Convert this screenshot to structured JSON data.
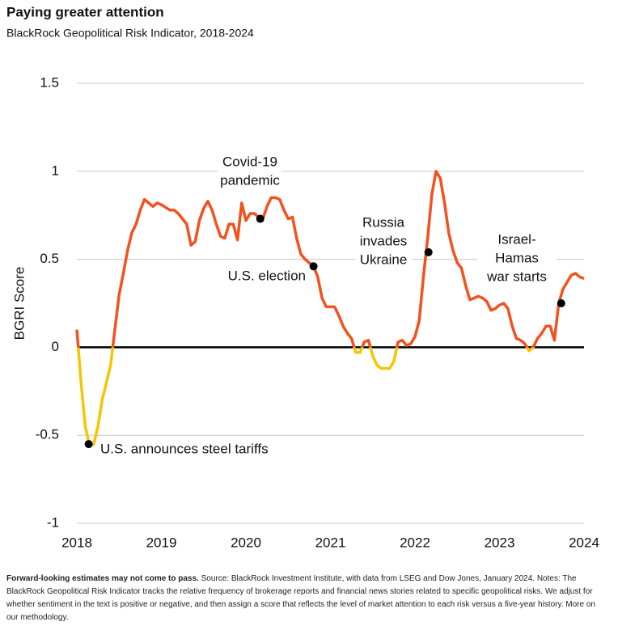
{
  "chart_data": {
    "type": "line",
    "title": "Paying greater attention",
    "subtitle": "BlackRock Geopolitical Risk Indicator, 2018-2024",
    "y_label": "BGRI Score",
    "xlim": [
      2018,
      2024
    ],
    "xticks": [
      2018,
      2019,
      2020,
      2021,
      2022,
      2023,
      2024
    ],
    "ylim": [
      -1,
      1.5
    ],
    "yticks": [
      -1,
      -0.5,
      0,
      0.5,
      1,
      1.5
    ],
    "grid": true,
    "series": [
      {
        "name": "BGRI",
        "color": "#f4511e",
        "negative_color": "#f7c600",
        "x": [
          2018,
          2018.05,
          2018.1,
          2018.15,
          2018.2,
          2018.25,
          2018.3,
          2018.35,
          2018.4,
          2018.45,
          2018.5,
          2018.55,
          2018.6,
          2018.65,
          2018.7,
          2018.75,
          2018.8,
          2018.85,
          2018.9,
          2018.95,
          2019,
          2019.1,
          2019.15,
          2019.2,
          2019.3,
          2019.35,
          2019.4,
          2019.45,
          2019.5,
          2019.55,
          2019.6,
          2019.65,
          2019.7,
          2019.75,
          2019.8,
          2019.85,
          2019.9,
          2019.95,
          2020,
          2020.05,
          2020.1,
          2020.15,
          2020.2,
          2020.25,
          2020.3,
          2020.35,
          2020.4,
          2020.45,
          2020.5,
          2020.55,
          2020.6,
          2020.65,
          2020.7,
          2020.75,
          2020.8,
          2020.85,
          2020.9,
          2020.95,
          2021,
          2021.05,
          2021.1,
          2021.15,
          2021.2,
          2021.25,
          2021.3,
          2021.35,
          2021.4,
          2021.45,
          2021.5,
          2021.55,
          2021.6,
          2021.65,
          2021.7,
          2021.75,
          2021.8,
          2021.85,
          2021.9,
          2021.95,
          2022,
          2022.05,
          2022.1,
          2022.15,
          2022.2,
          2022.25,
          2022.3,
          2022.35,
          2022.4,
          2022.45,
          2022.5,
          2022.55,
          2022.6,
          2022.65,
          2022.7,
          2022.75,
          2022.8,
          2022.85,
          2022.9,
          2022.95,
          2023,
          2023.05,
          2023.1,
          2023.15,
          2023.2,
          2023.25,
          2023.3,
          2023.35,
          2023.4,
          2023.45,
          2023.5,
          2023.55,
          2023.6,
          2023.65,
          2023.7,
          2023.75,
          2023.8,
          2023.85,
          2023.9,
          2023.95,
          2024
        ],
        "values": [
          0.1,
          -0.2,
          -0.45,
          -0.56,
          -0.55,
          -0.45,
          -0.3,
          -0.2,
          -0.1,
          0.1,
          0.3,
          0.42,
          0.55,
          0.65,
          0.7,
          0.78,
          0.84,
          0.82,
          0.8,
          0.82,
          0.81,
          0.78,
          0.78,
          0.76,
          0.7,
          0.58,
          0.6,
          0.72,
          0.79,
          0.83,
          0.78,
          0.7,
          0.63,
          0.62,
          0.7,
          0.7,
          0.61,
          0.82,
          0.72,
          0.76,
          0.76,
          0.74,
          0.73,
          0.8,
          0.85,
          0.85,
          0.84,
          0.78,
          0.73,
          0.74,
          0.62,
          0.53,
          0.5,
          0.48,
          0.46,
          0.4,
          0.28,
          0.23,
          0.23,
          0.23,
          0.18,
          0.12,
          0.08,
          0.05,
          -0.03,
          -0.03,
          0.03,
          0.04,
          -0.05,
          -0.1,
          -0.12,
          -0.12,
          -0.12,
          -0.08,
          0.03,
          0.04,
          0.01,
          0.02,
          0.06,
          0.15,
          0.4,
          0.62,
          0.87,
          1.0,
          0.96,
          0.82,
          0.65,
          0.55,
          0.48,
          0.45,
          0.35,
          0.27,
          0.28,
          0.29,
          0.28,
          0.26,
          0.21,
          0.22,
          0.24,
          0.25,
          0.22,
          0.12,
          0.05,
          0.04,
          0.02,
          -0.02,
          0,
          0.05,
          0.08,
          0.12,
          0.12,
          0.04,
          0.25,
          0.33,
          0.37,
          0.41,
          0.42,
          0.4,
          0.39
        ]
      }
    ],
    "annotations": [
      {
        "x": 2018.14,
        "y": -0.55,
        "lines": [
          "U.S. announces steel tariffs"
        ]
      },
      {
        "x": 2020.17,
        "y": 0.73,
        "lines": [
          "Covid-19",
          "pandemic"
        ]
      },
      {
        "x": 2020.8,
        "y": 0.46,
        "lines": [
          "U.S. election"
        ]
      },
      {
        "x": 2022.16,
        "y": 0.54,
        "lines": [
          "Russia",
          "invades",
          "Ukraine"
        ]
      },
      {
        "x": 2023.73,
        "y": 0.25,
        "lines": [
          "Israel-",
          "Hamas",
          "war starts"
        ]
      }
    ],
    "footnote_bold": "Forward-looking estimates may not come to pass.",
    "footnote": "Source: BlackRock Investment Institute, with data from LSEG and Dow Jones, January 2024. Notes: The BlackRock Geopolitical Risk Indicator tracks the relative frequency of brokerage reports and financial news stories related to specific geopolitical risks. We adjust for whether sentiment in the text is positive or negative, and then assign a score that reflects the level of market attention to each risk versus a five-year history. More on our methodology."
  }
}
